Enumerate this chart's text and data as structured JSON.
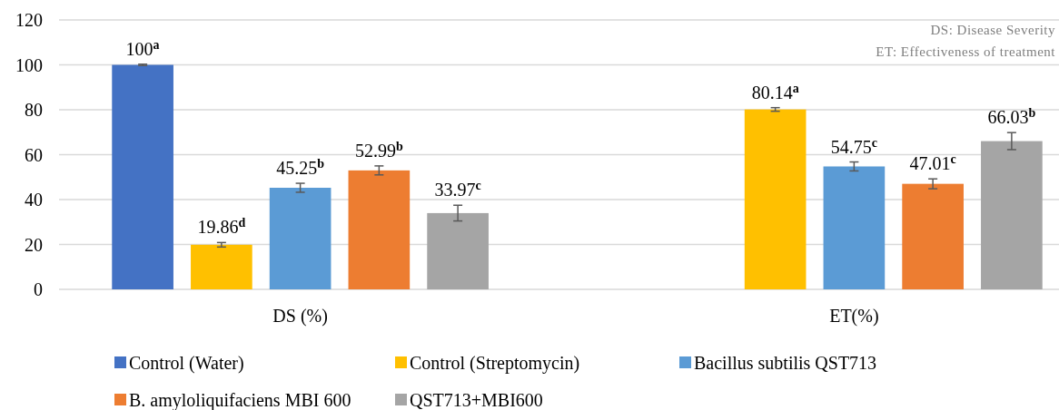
{
  "chart_data": {
    "type": "bar",
    "categories": [
      "DS (%)",
      "ET(%)"
    ],
    "series": [
      {
        "name": "Control (Water)",
        "color": "#4472c4",
        "values": [
          100,
          0
        ],
        "errors": [
          0.3,
          null
        ],
        "value_labels": [
          "100$^{a}$",
          null
        ]
      },
      {
        "name": "Control (Streptomycin)",
        "color": "#ffc000",
        "values": [
          19.86,
          80.14
        ],
        "errors": [
          1,
          0.8
        ],
        "value_labels": [
          "19.86$^{d}$",
          "80.14$^{a}$"
        ]
      },
      {
        "name": "Bacillus subtilis QST713",
        "color": "#5b9bd5",
        "values": [
          45.25,
          54.75
        ],
        "errors": [
          2,
          2
        ],
        "value_labels": [
          "45.25$^{b}$",
          "54.75$^{c}$"
        ]
      },
      {
        "name": "B. amyloliquifaciens MBI 600",
        "color": "#ed7d31",
        "values": [
          52.99,
          47.01
        ],
        "errors": [
          2,
          2.2
        ],
        "value_labels": [
          "52.99$^{b}$",
          "47.01$^{c}$"
        ]
      },
      {
        "name": "QST713+MBI600",
        "color": "#a5a5a5",
        "values": [
          33.97,
          66.03
        ],
        "errors": [
          3.5,
          3.8
        ],
        "value_labels": [
          "33.97$^{c}$",
          "66.03$^{b}$"
        ]
      }
    ],
    "ylim": [
      0,
      120
    ],
    "yticks": [
      0,
      20,
      40,
      60,
      80,
      100,
      120
    ],
    "grid": "y",
    "legend": "bottom",
    "annotations": [
      "DS: Disease Severity",
      "ET: Effectiveness of treatment"
    ]
  }
}
